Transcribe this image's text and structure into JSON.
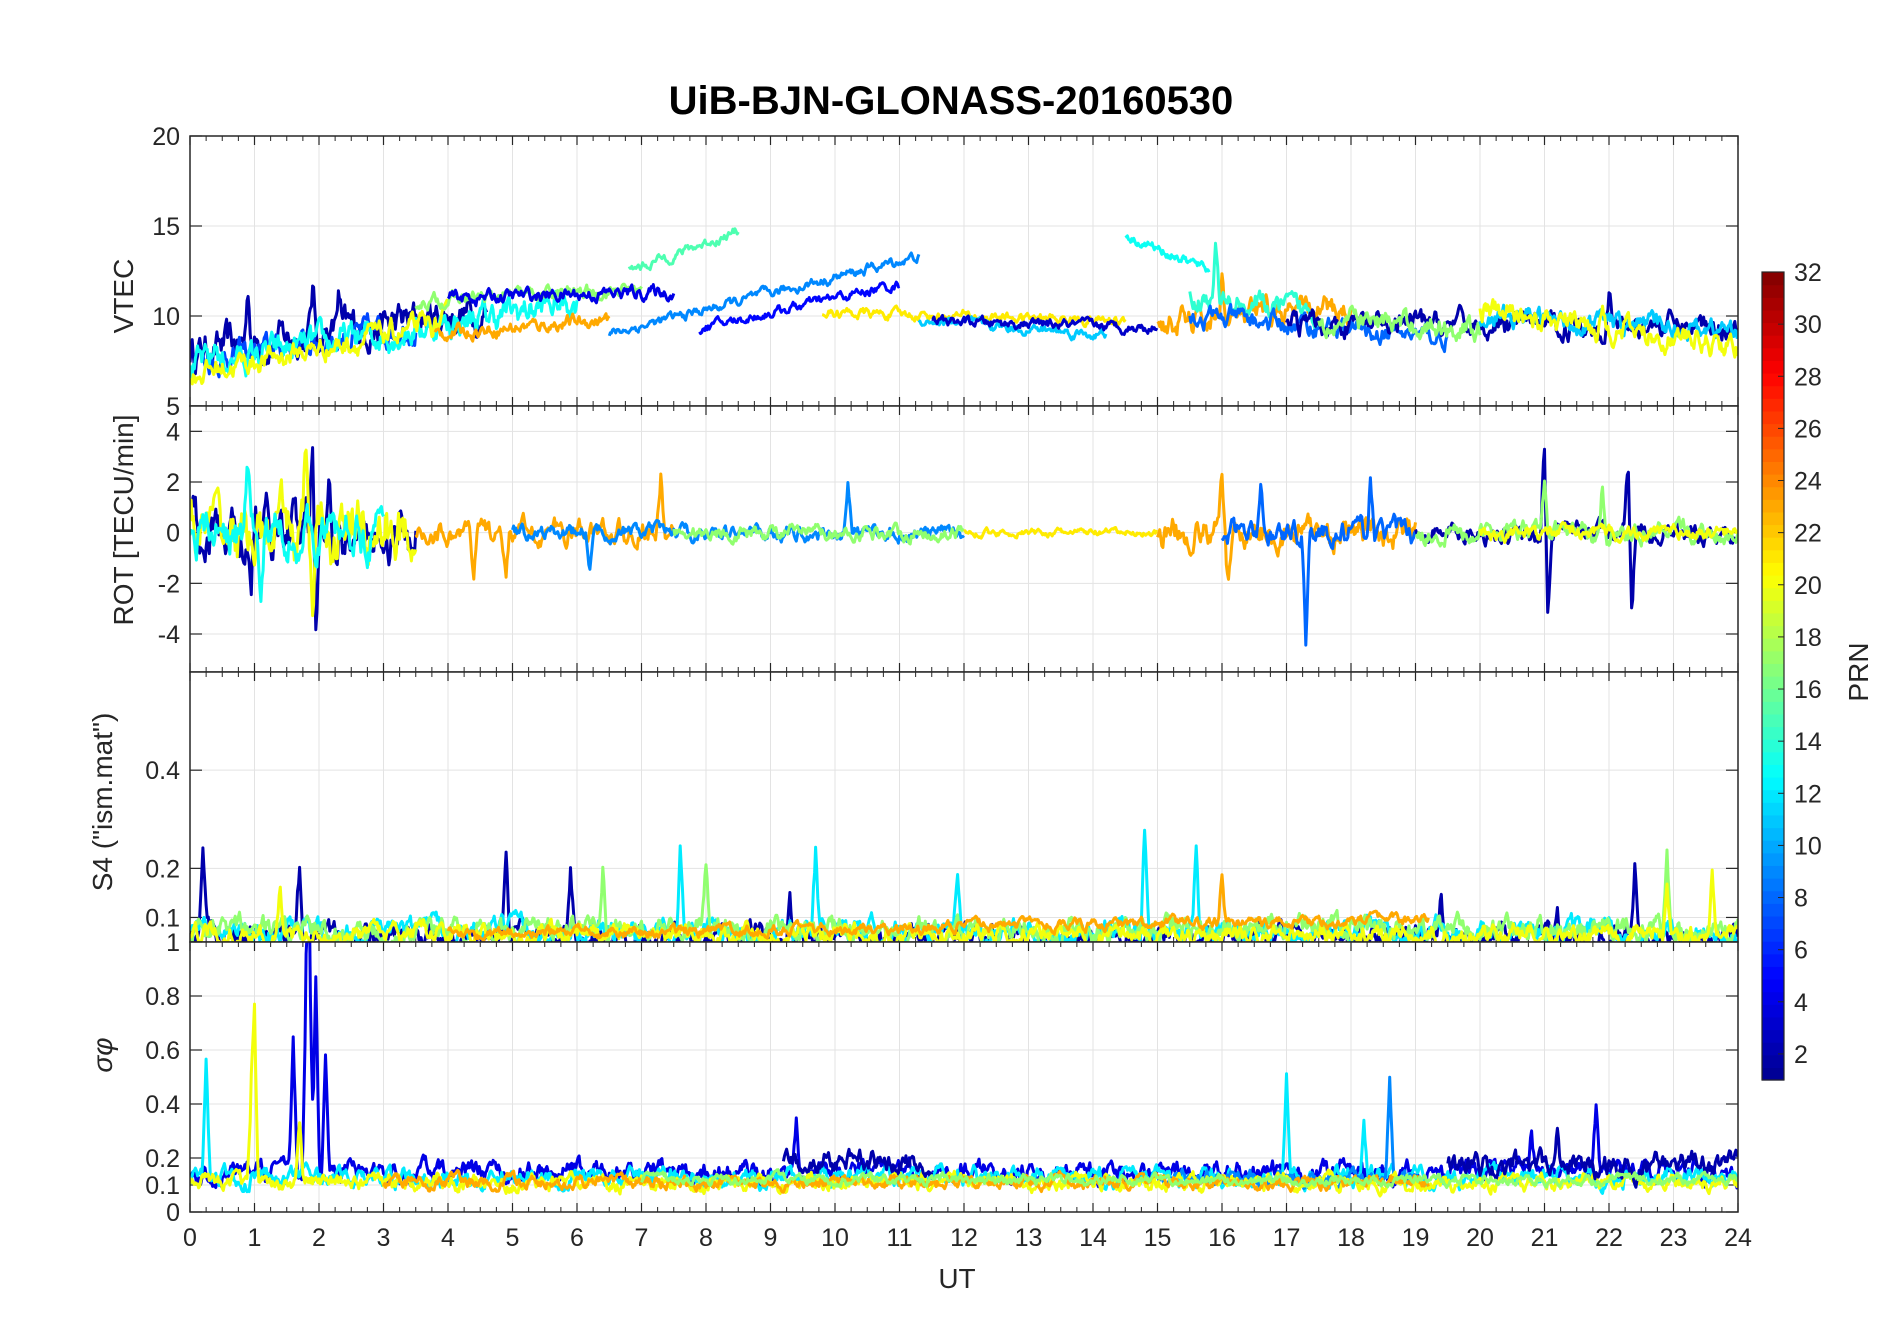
{
  "chart_data": {
    "type": "line",
    "title": "UiB-BJN-GLONASS-20160530",
    "xlabel": "UT",
    "xlim": [
      0,
      24
    ],
    "xticks": [
      "0",
      "1",
      "2",
      "3",
      "4",
      "5",
      "6",
      "7",
      "8",
      "9",
      "10",
      "11",
      "12",
      "13",
      "14",
      "15",
      "16",
      "17",
      "18",
      "19",
      "20",
      "21",
      "22",
      "23",
      "24"
    ],
    "grid": true,
    "panels": [
      {
        "name": "vtec",
        "ylabel": "VTEC",
        "ylim": [
          5,
          20
        ],
        "yticks": [
          "5",
          "10",
          "15",
          "20"
        ],
        "tracks": [
          {
            "prn": 2,
            "start": 0.0,
            "end": 4.6,
            "base": 8.0,
            "slope": 0.5,
            "noise": 1.1,
            "spikes": [
              [
                0.9,
                3.0
              ],
              [
                1.9,
                2.5
              ],
              [
                2.3,
                2.0
              ]
            ]
          },
          {
            "prn": 7,
            "start": 0.2,
            "end": 3.5,
            "base": 7.5,
            "slope": 0.6,
            "noise": 0.8,
            "spikes": []
          },
          {
            "prn": 13,
            "start": 0.0,
            "end": 6.0,
            "base": 7.2,
            "slope": 0.6,
            "noise": 0.9,
            "spikes": [
              [
                0.4,
                1.2
              ]
            ]
          },
          {
            "prn": 20,
            "start": 0.0,
            "end": 4.0,
            "base": 6.8,
            "slope": 0.7,
            "noise": 0.7,
            "spikes": []
          },
          {
            "prn": 17,
            "start": 3.5,
            "end": 7.0,
            "base": 10.8,
            "slope": 0.2,
            "noise": 0.4,
            "spikes": []
          },
          {
            "prn": 23,
            "start": 3.8,
            "end": 6.5,
            "base": 9.0,
            "slope": 0.3,
            "noise": 0.4,
            "spikes": []
          },
          {
            "prn": 4,
            "start": 4.0,
            "end": 7.5,
            "base": 11.0,
            "slope": 0.1,
            "noise": 0.4,
            "spikes": []
          },
          {
            "prn": 9,
            "start": 6.5,
            "end": 11.3,
            "base": 9.0,
            "slope": 0.9,
            "noise": 0.3,
            "spikes": []
          },
          {
            "prn": 15,
            "start": 6.8,
            "end": 8.5,
            "base": 12.5,
            "slope": 1.3,
            "noise": 0.3,
            "spikes": []
          },
          {
            "prn": 5,
            "start": 7.9,
            "end": 11.0,
            "base": 9.3,
            "slope": 0.8,
            "noise": 0.3,
            "spikes": []
          },
          {
            "prn": 21,
            "start": 9.8,
            "end": 14.5,
            "base": 10.2,
            "slope": -0.1,
            "noise": 0.3,
            "spikes": []
          },
          {
            "prn": 11,
            "start": 11.3,
            "end": 14.2,
            "base": 9.8,
            "slope": -0.3,
            "noise": 0.3,
            "spikes": []
          },
          {
            "prn": 3,
            "start": 11.5,
            "end": 15.0,
            "base": 9.7,
            "slope": -0.1,
            "noise": 0.3,
            "spikes": []
          },
          {
            "prn": 13,
            "start": 14.5,
            "end": 15.8,
            "base": 14.5,
            "slope": -1.5,
            "noise": 0.3,
            "spikes": []
          },
          {
            "prn": 23,
            "start": 15.0,
            "end": 18.0,
            "base": 9.5,
            "slope": 0.3,
            "noise": 0.8,
            "spikes": [
              [
                16.0,
                2.5
              ]
            ]
          },
          {
            "prn": 14,
            "start": 15.5,
            "end": 17.5,
            "base": 11.0,
            "slope": -0.4,
            "noise": 0.7,
            "spikes": [
              [
                15.9,
                3.0
              ]
            ]
          },
          {
            "prn": 8,
            "start": 15.5,
            "end": 19.5,
            "base": 10.0,
            "slope": -0.3,
            "noise": 0.6,
            "spikes": []
          },
          {
            "prn": 2,
            "start": 17.0,
            "end": 24.0,
            "base": 9.5,
            "slope": 0.0,
            "noise": 0.7,
            "spikes": [
              [
                22.0,
                2.0
              ]
            ]
          },
          {
            "prn": 17,
            "start": 17.5,
            "end": 20.0,
            "base": 9.8,
            "slope": -0.2,
            "noise": 0.7,
            "spikes": []
          },
          {
            "prn": 11,
            "start": 20.0,
            "end": 24.0,
            "base": 10.0,
            "slope": -0.2,
            "noise": 0.6,
            "spikes": []
          },
          {
            "prn": 20,
            "start": 20.0,
            "end": 24.0,
            "base": 10.3,
            "slope": -0.5,
            "noise": 0.7,
            "spikes": [
              [
                21.9,
                1.5
              ]
            ]
          }
        ]
      },
      {
        "name": "rot",
        "ylabel": "ROT [TECU/min]",
        "ylim": [
          -5.5,
          5
        ],
        "yticks": [
          "-4",
          "-2",
          "0",
          "2",
          "4"
        ],
        "tracks": [
          {
            "prn": 2,
            "start": 0.0,
            "end": 3.5,
            "base": 0,
            "slope": 0,
            "noise": 1.1,
            "spikes": [
              [
                1.9,
                3.8
              ],
              [
                1.95,
                -4.9
              ],
              [
                2.15,
                3.0
              ],
              [
                0.95,
                -3.0
              ]
            ]
          },
          {
            "prn": 20,
            "start": 0.0,
            "end": 3.5,
            "base": 0,
            "slope": 0,
            "noise": 1.3,
            "spikes": [
              [
                1.8,
                3.2
              ],
              [
                1.9,
                -2.9
              ]
            ]
          },
          {
            "prn": 13,
            "start": 0.0,
            "end": 3.0,
            "base": 0,
            "slope": 0,
            "noise": 0.9,
            "spikes": [
              [
                1.1,
                -3.3
              ],
              [
                0.9,
                2.4
              ]
            ]
          },
          {
            "prn": 23,
            "start": 3.5,
            "end": 7.5,
            "base": 0,
            "slope": 0,
            "noise": 0.5,
            "spikes": [
              [
                7.3,
                2.2
              ],
              [
                4.4,
                -2.3
              ],
              [
                4.9,
                -2.3
              ]
            ]
          },
          {
            "prn": 9,
            "start": 5.0,
            "end": 12.0,
            "base": 0,
            "slope": 0,
            "noise": 0.3,
            "spikes": [
              [
                10.2,
                1.9
              ],
              [
                6.2,
                -1.3
              ]
            ]
          },
          {
            "prn": 17,
            "start": 7.5,
            "end": 12.0,
            "base": 0,
            "slope": 0,
            "noise": 0.3,
            "spikes": []
          },
          {
            "prn": 21,
            "start": 12.0,
            "end": 15.0,
            "base": 0,
            "slope": 0,
            "noise": 0.15,
            "spikes": []
          },
          {
            "prn": 23,
            "start": 15.0,
            "end": 19.0,
            "base": 0,
            "slope": 0,
            "noise": 0.6,
            "spikes": [
              [
                16.1,
                -2.2
              ],
              [
                16.0,
                2.2
              ]
            ]
          },
          {
            "prn": 8,
            "start": 16.0,
            "end": 19.0,
            "base": 0,
            "slope": 0,
            "noise": 0.5,
            "spikes": [
              [
                16.6,
                4.3
              ],
              [
                16.6,
                -2.8
              ],
              [
                17.3,
                -4.0
              ],
              [
                18.3,
                2.2
              ]
            ]
          },
          {
            "prn": 2,
            "start": 19.0,
            "end": 24.0,
            "base": 0,
            "slope": 0,
            "noise": 0.4,
            "spikes": [
              [
                21.0,
                3.6
              ],
              [
                21.05,
                -3.8
              ],
              [
                22.3,
                2.9
              ],
              [
                22.35,
                -2.9
              ]
            ]
          },
          {
            "prn": 17,
            "start": 19.0,
            "end": 24.0,
            "base": 0,
            "slope": 0,
            "noise": 0.4,
            "spikes": [
              [
                21.0,
                2.0
              ],
              [
                21.9,
                2.0
              ]
            ]
          },
          {
            "prn": 20,
            "start": 20.0,
            "end": 24.0,
            "base": 0,
            "slope": 0,
            "noise": 0.3,
            "spikes": []
          }
        ]
      },
      {
        "name": "s4",
        "ylabel": "S4 (\"ism.mat\")",
        "ylim": [
          0.05,
          0.6
        ],
        "yticks": [
          "0.1",
          "0.2",
          "0.4"
        ],
        "tracks": [
          {
            "prn": 2,
            "start": 0.0,
            "end": 24.0,
            "base": 0.06,
            "slope": 0,
            "noise": 0.025,
            "spikes": [
              [
                0.2,
                0.15
              ],
              [
                1.7,
                0.14
              ],
              [
                4.9,
                0.18
              ],
              [
                5.9,
                0.14
              ],
              [
                9.3,
                0.11
              ],
              [
                19.4,
                0.08
              ],
              [
                21.2,
                0.09
              ],
              [
                22.4,
                0.14
              ]
            ]
          },
          {
            "prn": 12,
            "start": 0.0,
            "end": 24.0,
            "base": 0.07,
            "slope": 0,
            "noise": 0.025,
            "spikes": [
              [
                7.6,
                0.17
              ],
              [
                9.7,
                0.16
              ],
              [
                14.8,
                0.2
              ],
              [
                15.6,
                0.18
              ],
              [
                11.9,
                0.12
              ]
            ]
          },
          {
            "prn": 17,
            "start": 0.0,
            "end": 24.0,
            "base": 0.075,
            "slope": 0,
            "noise": 0.025,
            "spikes": [
              [
                6.4,
                0.14
              ],
              [
                8.0,
                0.12
              ],
              [
                22.9,
                0.13
              ]
            ]
          },
          {
            "prn": 20,
            "start": 0.0,
            "end": 24.0,
            "base": 0.065,
            "slope": 0,
            "noise": 0.02,
            "spikes": [
              [
                1.4,
                0.1
              ],
              [
                22.9,
                0.12
              ],
              [
                23.6,
                0.13
              ]
            ]
          },
          {
            "prn": 23,
            "start": 4.0,
            "end": 19.2,
            "base": 0.065,
            "slope": 0.002,
            "noise": 0.012,
            "spikes": [
              [
                16.0,
                0.1
              ]
            ]
          }
        ]
      },
      {
        "name": "sigma",
        "ylabel": "σφ",
        "ylim": [
          0,
          1
        ],
        "yticks": [
          "0",
          "0.1",
          "0.2",
          "0.4",
          "0.6",
          "0.8",
          "1"
        ],
        "tracks": [
          {
            "prn": 4,
            "start": 0.0,
            "end": 24.0,
            "base": 0.15,
            "slope": 0,
            "noise": 0.04,
            "spikes": [
              [
                1.8,
                0.65
              ],
              [
                1.85,
                0.88
              ],
              [
                1.95,
                0.7
              ],
              [
                1.6,
                0.45
              ],
              [
                2.1,
                0.4
              ],
              [
                9.4,
                0.2
              ],
              [
                20.8,
                0.15
              ],
              [
                21.8,
                0.25
              ]
            ]
          },
          {
            "prn": 12,
            "start": 0.0,
            "end": 24.0,
            "base": 0.13,
            "slope": 0,
            "noise": 0.035,
            "spikes": [
              [
                0.25,
                0.4
              ],
              [
                17.0,
                0.35
              ],
              [
                18.2,
                0.18
              ]
            ]
          },
          {
            "prn": 9,
            "start": 15.0,
            "end": 19.0,
            "base": 0.12,
            "slope": 0,
            "noise": 0.03,
            "spikes": [
              [
                18.6,
                0.38
              ]
            ]
          },
          {
            "prn": 20,
            "start": 0.0,
            "end": 24.0,
            "base": 0.11,
            "slope": 0,
            "noise": 0.03,
            "spikes": [
              [
                1.0,
                0.6
              ],
              [
                0.95,
                0.3
              ],
              [
                1.7,
                0.22
              ]
            ]
          },
          {
            "prn": 23,
            "start": 3.0,
            "end": 19.2,
            "base": 0.11,
            "slope": 0,
            "noise": 0.025,
            "spikes": []
          },
          {
            "prn": 2,
            "start": 9.2,
            "end": 11.5,
            "base": 0.19,
            "slope": 0,
            "noise": 0.04,
            "spikes": []
          },
          {
            "prn": 2,
            "start": 19.5,
            "end": 24.0,
            "base": 0.17,
            "slope": 0,
            "noise": 0.045,
            "spikes": [
              [
                21.2,
                0.15
              ]
            ]
          },
          {
            "prn": 17,
            "start": 7.0,
            "end": 24.0,
            "base": 0.12,
            "slope": 0,
            "noise": 0.02,
            "spikes": []
          }
        ]
      }
    ],
    "colorbar": {
      "label": "PRN",
      "range": [
        1,
        32
      ],
      "ticks": [
        "2",
        "4",
        "6",
        "8",
        "10",
        "12",
        "14",
        "16",
        "18",
        "20",
        "22",
        "24",
        "26",
        "28",
        "30",
        "32"
      ],
      "colormap": [
        "#00008f",
        "#0000ff",
        "#0080ff",
        "#00ffff",
        "#80ff80",
        "#ffff00",
        "#ff8000",
        "#ff0000",
        "#800000"
      ]
    }
  }
}
